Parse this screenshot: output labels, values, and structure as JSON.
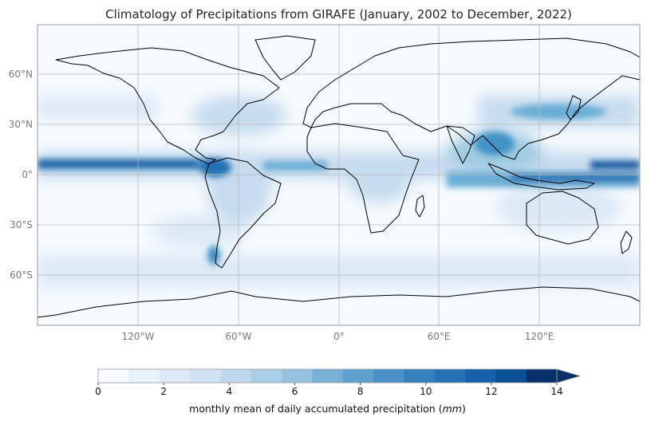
{
  "title": "Climatology of Precipitations from GIRAFE (January, 2002 to December, 2022)",
  "map": {
    "projection": "PlateCarree",
    "lon_ticks": [
      "120°W",
      "60°W",
      "0°",
      "60°E",
      "120°E"
    ],
    "lat_ticks": [
      "60°N",
      "30°N",
      "0°",
      "30°S",
      "60°S"
    ],
    "gridlines": true,
    "coastlines": true
  },
  "colorbar": {
    "cmap": "Blues",
    "range": [
      0,
      14
    ],
    "levels": 15,
    "extend": "max",
    "ticks": [
      "0",
      "2",
      "4",
      "6",
      "8",
      "10",
      "12",
      "14"
    ],
    "label_prefix": "monthly mean of daily accumulated precipitation (",
    "label_unit": "mm",
    "label_suffix": ")",
    "colors": [
      "#f7fbff",
      "#e9f2fb",
      "#dde9f7",
      "#d0e2f3",
      "#c0d8ee",
      "#aacee6",
      "#93c1df",
      "#79b0d8",
      "#60a0cf",
      "#4b90c6",
      "#3780be",
      "#2670b4",
      "#1661a9",
      "#0b4f97",
      "#08306b"
    ]
  }
}
